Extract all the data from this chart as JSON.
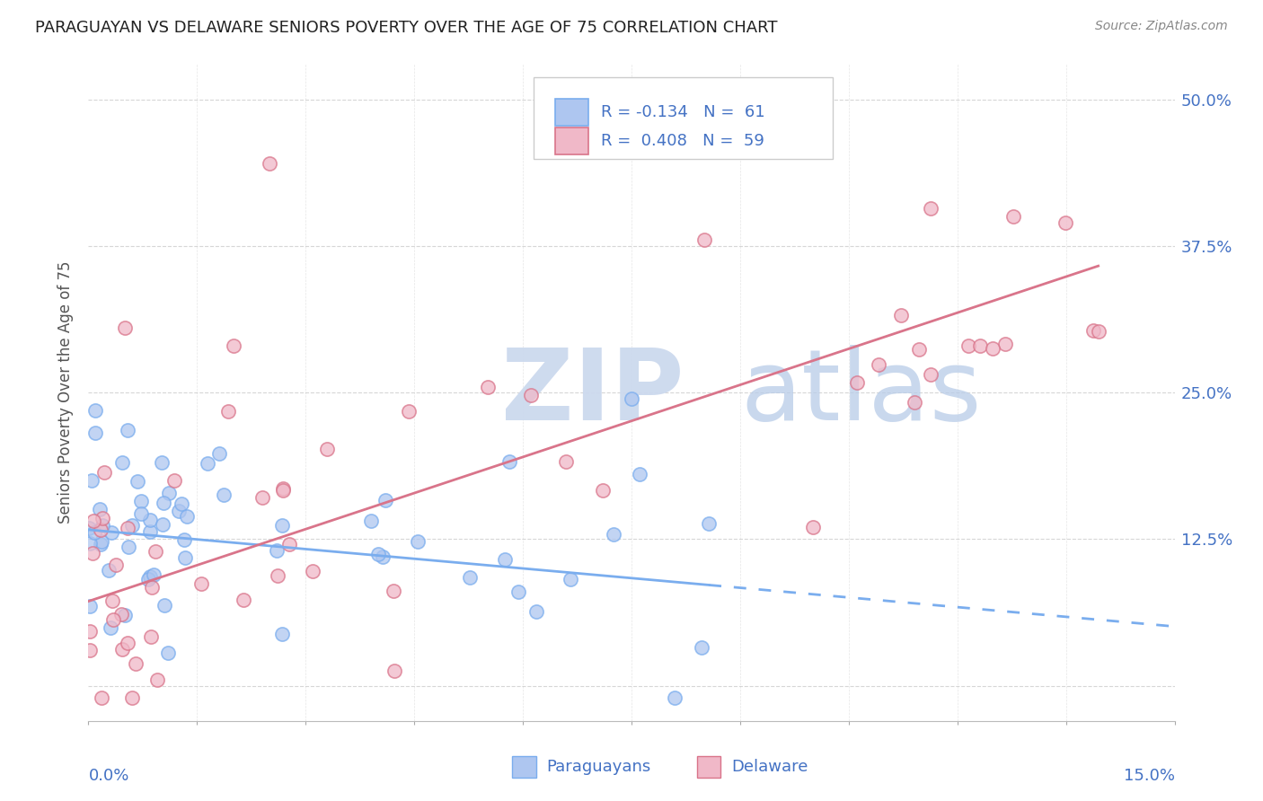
{
  "title": "PARAGUAYAN VS DELAWARE SENIORS POVERTY OVER THE AGE OF 75 CORRELATION CHART",
  "source": "Source: ZipAtlas.com",
  "ylabel": "Seniors Poverty Over the Age of 75",
  "xmin": 0.0,
  "xmax": 0.15,
  "ymin": -0.03,
  "ymax": 0.53,
  "blue_color": "#7aadee",
  "blue_fill": "#aec6f0",
  "pink_color": "#d9748a",
  "pink_fill": "#f0b8c8",
  "text_color": "#4472c4",
  "dark_text": "#333333",
  "watermark_zip_color": "#ccd9ee",
  "watermark_atlas_color": "#b8cce8",
  "r_blue": -0.134,
  "n_blue": 61,
  "r_pink": 0.408,
  "n_pink": 59,
  "grid_color": "#cccccc",
  "title_fontsize": 13,
  "axis_fontsize": 13,
  "legend_fontsize": 13,
  "source_fontsize": 10,
  "blue_line_intercept": 0.133,
  "blue_line_slope": -0.55,
  "pink_line_intercept": 0.072,
  "pink_line_slope": 2.05
}
